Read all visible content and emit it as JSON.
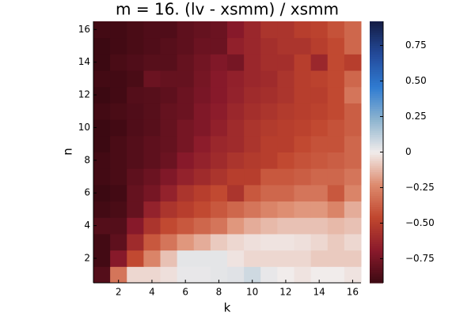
{
  "chart_data": {
    "type": "heatmap",
    "title": "m = 16. (lv - xsmm) / xsmm",
    "xlabel": "k",
    "ylabel": "n",
    "xlim": [
      0.5,
      16.5
    ],
    "ylim": [
      0.5,
      16.5
    ],
    "xticks": [
      2,
      4,
      6,
      8,
      10,
      12,
      14,
      16
    ],
    "yticks": [
      2,
      4,
      6,
      8,
      10,
      12,
      14,
      16
    ],
    "clim": [
      -0.92,
      0.92
    ],
    "cticks": [
      {
        "value": -0.75,
        "label": "−0.75"
      },
      {
        "value": -0.5,
        "label": "−0.50"
      },
      {
        "value": -0.25,
        "label": "−0.25"
      },
      0,
      0.25,
      {
        "value": 0.5,
        "label": "0.50"
      },
      0.75
    ],
    "colormap": [
      "#3c0912",
      "#8a1a2b",
      "#c0462e",
      "#dd8a6d",
      "#f1eceb",
      "#8db4cf",
      "#2f7bd1",
      "#244a9a",
      "#141d45"
    ],
    "z": [
      [
        -0.85,
        -0.3,
        -0.05,
        -0.05,
        -0.03,
        0.02,
        0.02,
        0.03,
        0.04,
        0.08,
        0.02,
        0.0,
        -0.02,
        0.0,
        0.0,
        -0.02
      ],
      [
        -0.9,
        -0.7,
        -0.45,
        -0.25,
        -0.1,
        0.03,
        0.03,
        0.03,
        -0.02,
        -0.05,
        -0.05,
        -0.05,
        -0.05,
        -0.08,
        -0.08,
        -0.08
      ],
      [
        -0.9,
        -0.82,
        -0.6,
        -0.4,
        -0.3,
        -0.2,
        -0.15,
        -0.08,
        -0.05,
        -0.03,
        -0.02,
        -0.02,
        -0.03,
        -0.05,
        -0.08,
        -0.05
      ],
      [
        -0.85,
        -0.85,
        -0.7,
        -0.55,
        -0.45,
        -0.4,
        -0.35,
        -0.3,
        -0.2,
        -0.15,
        -0.12,
        -0.1,
        -0.1,
        -0.1,
        -0.12,
        -0.1
      ],
      [
        -0.9,
        -0.88,
        -0.8,
        -0.65,
        -0.55,
        -0.5,
        -0.45,
        -0.4,
        -0.35,
        -0.3,
        -0.25,
        -0.22,
        -0.2,
        -0.2,
        -0.25,
        -0.15
      ],
      [
        -0.92,
        -0.9,
        -0.8,
        -0.75,
        -0.65,
        -0.55,
        -0.5,
        -0.45,
        -0.55,
        -0.4,
        -0.35,
        -0.35,
        -0.3,
        -0.3,
        -0.4,
        -0.25
      ],
      [
        -0.9,
        -0.88,
        -0.82,
        -0.78,
        -0.72,
        -0.65,
        -0.6,
        -0.55,
        -0.5,
        -0.5,
        -0.4,
        -0.4,
        -0.38,
        -0.35,
        -0.35,
        -0.3
      ],
      [
        -0.9,
        -0.88,
        -0.85,
        -0.82,
        -0.78,
        -0.7,
        -0.65,
        -0.6,
        -0.55,
        -0.52,
        -0.5,
        -0.45,
        -0.42,
        -0.4,
        -0.38,
        -0.35
      ],
      [
        -0.92,
        -0.88,
        -0.85,
        -0.82,
        -0.8,
        -0.75,
        -0.68,
        -0.62,
        -0.6,
        -0.55,
        -0.5,
        -0.5,
        -0.45,
        -0.42,
        -0.42,
        -0.35
      ],
      [
        -0.92,
        -0.9,
        -0.86,
        -0.84,
        -0.8,
        -0.75,
        -0.72,
        -0.66,
        -0.6,
        -0.55,
        -0.52,
        -0.5,
        -0.48,
        -0.45,
        -0.42,
        -0.38
      ],
      [
        -0.9,
        -0.88,
        -0.86,
        -0.84,
        -0.8,
        -0.78,
        -0.72,
        -0.68,
        -0.62,
        -0.58,
        -0.55,
        -0.52,
        -0.5,
        -0.48,
        -0.45,
        -0.38
      ],
      [
        -0.92,
        -0.9,
        -0.85,
        -0.84,
        -0.82,
        -0.78,
        -0.74,
        -0.7,
        -0.65,
        -0.6,
        -0.58,
        -0.55,
        -0.5,
        -0.5,
        -0.45,
        -0.3
      ],
      [
        -0.9,
        -0.9,
        -0.88,
        -0.78,
        -0.8,
        -0.8,
        -0.75,
        -0.7,
        -0.66,
        -0.62,
        -0.6,
        -0.55,
        -0.5,
        -0.48,
        -0.45,
        -0.35
      ],
      [
        -0.92,
        -0.88,
        -0.86,
        -0.84,
        -0.84,
        -0.8,
        -0.76,
        -0.72,
        -0.75,
        -0.62,
        -0.58,
        -0.58,
        -0.5,
        -0.62,
        -0.45,
        -0.5
      ],
      [
        -0.92,
        -0.9,
        -0.88,
        -0.86,
        -0.84,
        -0.82,
        -0.78,
        -0.78,
        -0.66,
        -0.62,
        -0.58,
        -0.55,
        -0.55,
        -0.5,
        -0.45,
        -0.35
      ],
      [
        -0.9,
        -0.9,
        -0.88,
        -0.86,
        -0.86,
        -0.82,
        -0.8,
        -0.78,
        -0.7,
        -0.62,
        -0.55,
        -0.55,
        -0.5,
        -0.48,
        -0.42,
        -0.35
      ]
    ]
  }
}
